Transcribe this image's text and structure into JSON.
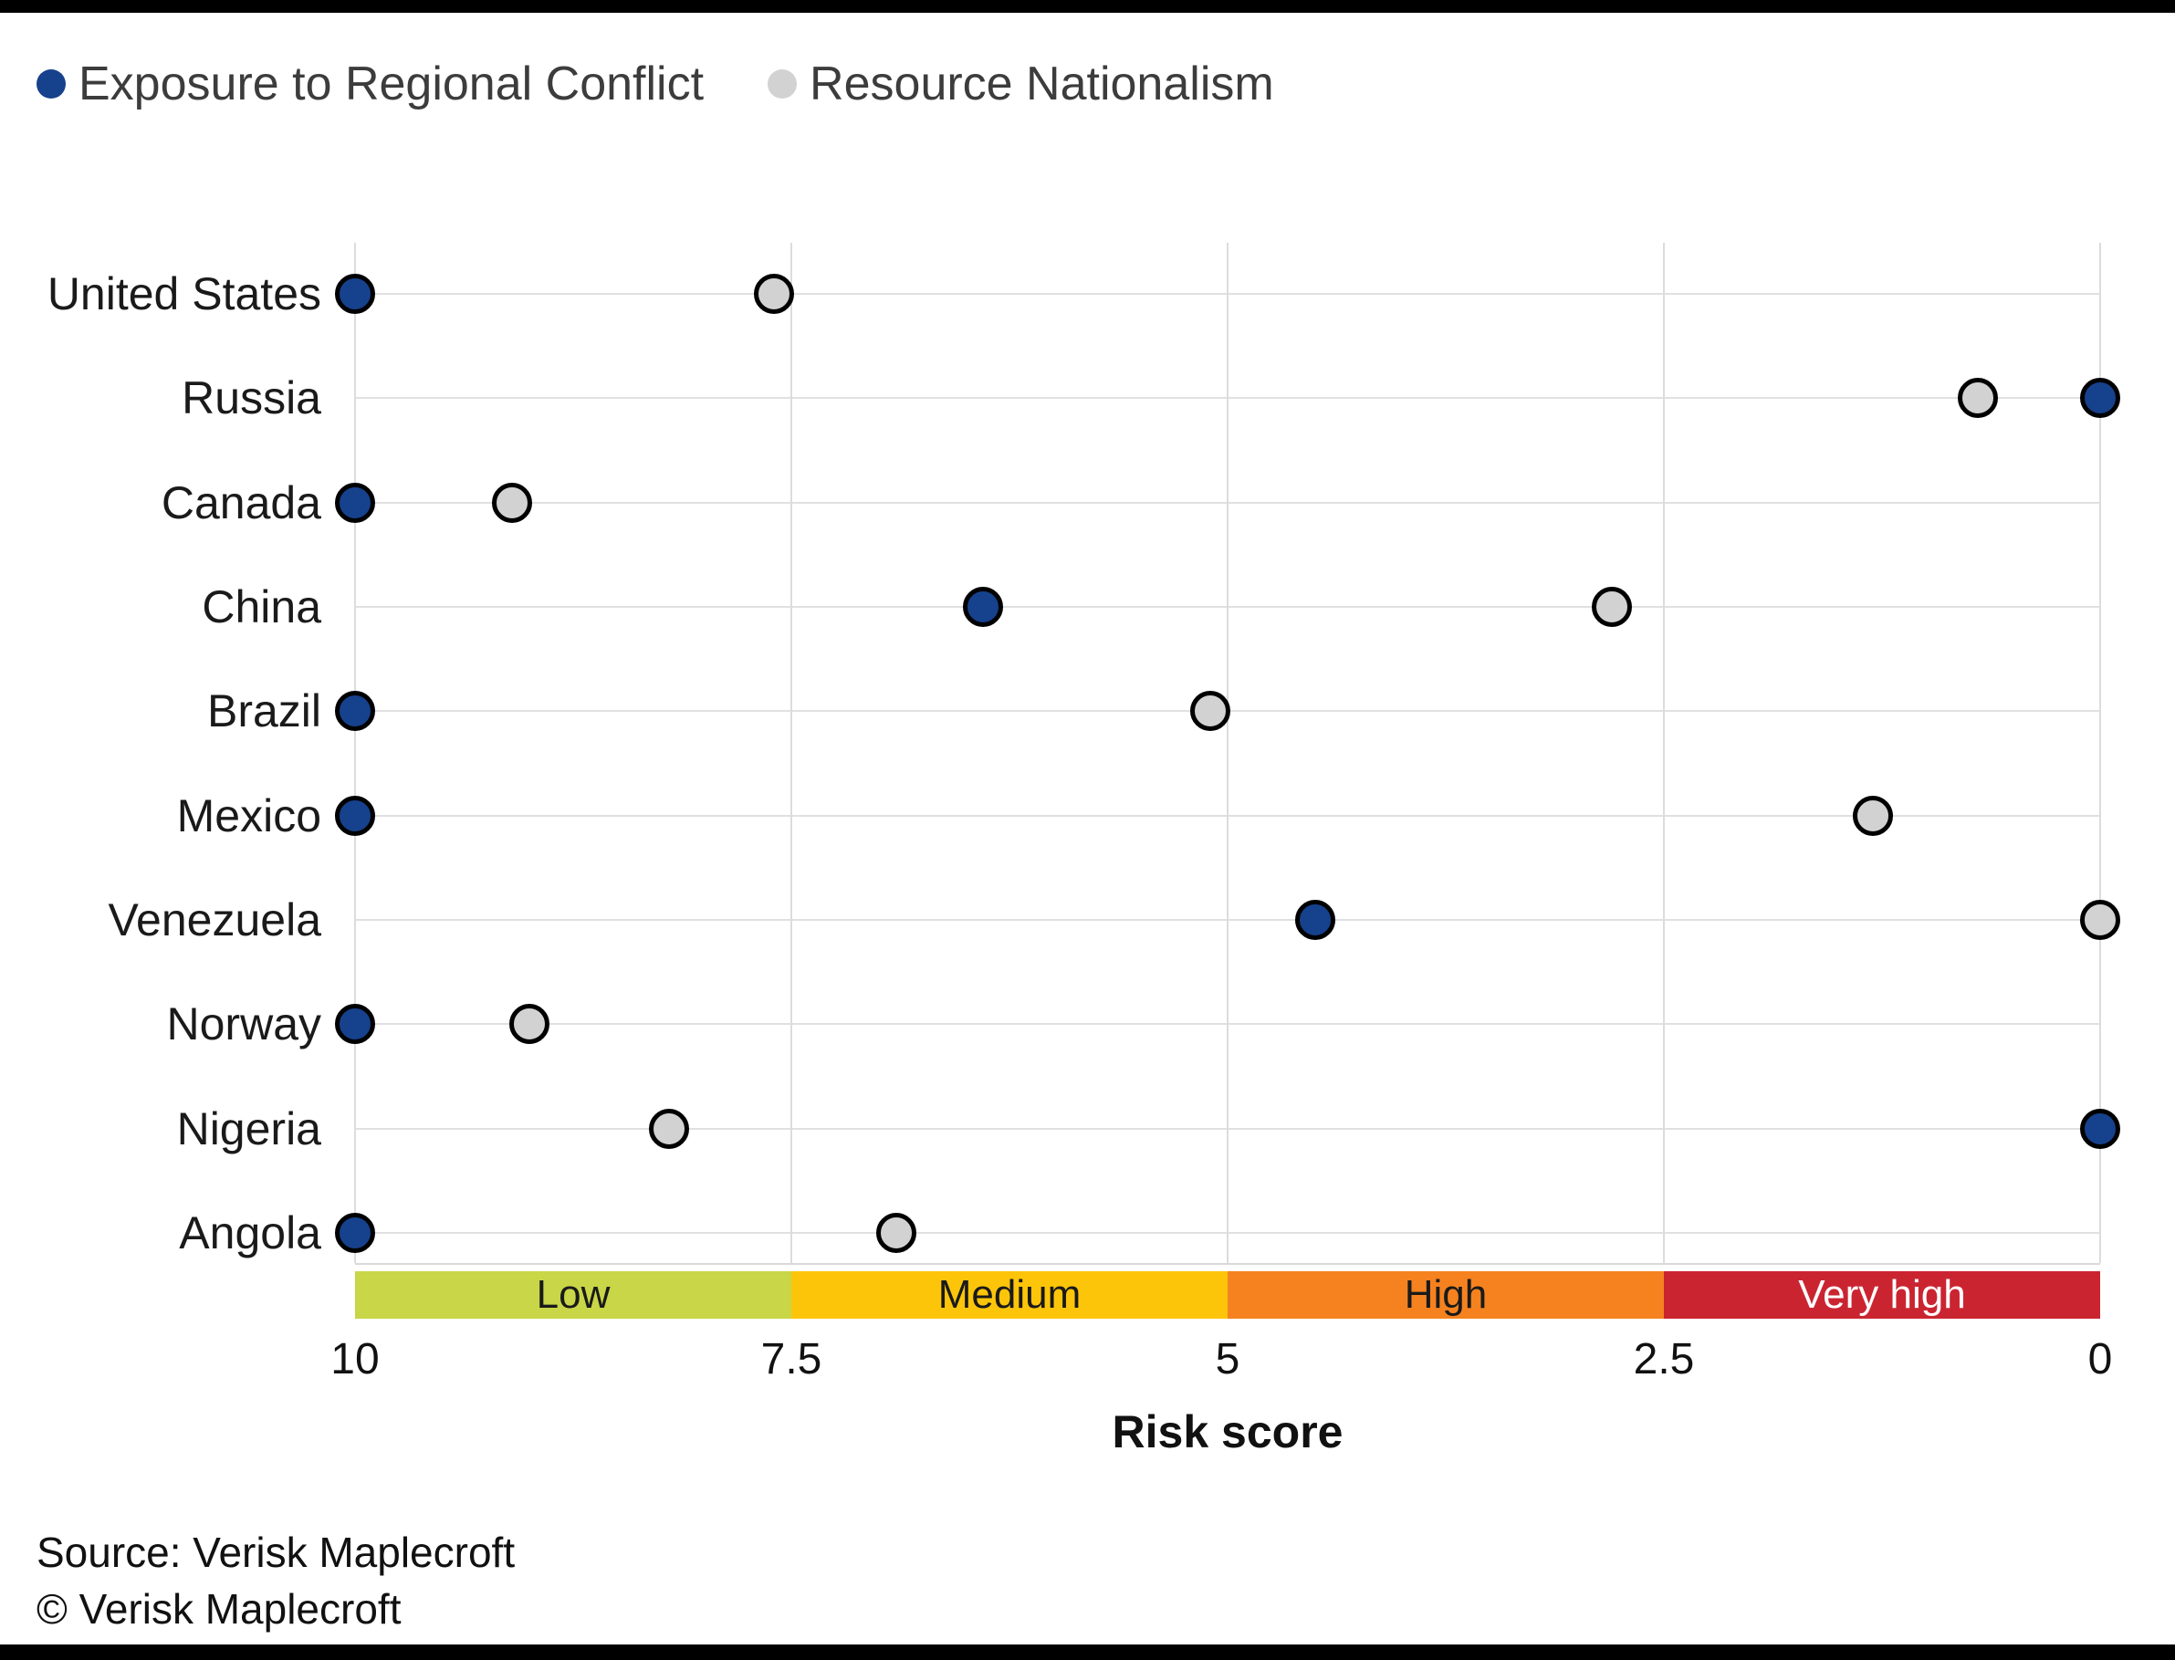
{
  "legend": {
    "items": [
      {
        "label": "Exposure to Regional Conflict",
        "color": "#16418C"
      },
      {
        "label": "Resource Nationalism",
        "color": "#D2D2D2"
      }
    ]
  },
  "chart_data": {
    "type": "scatter",
    "orientation": "horizontal-dot-plot",
    "categories": [
      "United States",
      "Russia",
      "Canada",
      "China",
      "Brazil",
      "Mexico",
      "Venezuela",
      "Norway",
      "Nigeria",
      "Angola"
    ],
    "series": [
      {
        "name": "Exposure to Regional Conflict",
        "color": "#16418C",
        "stroke": "#000000",
        "values": [
          10,
          0,
          10,
          6.4,
          10,
          10,
          4.5,
          10,
          0,
          10
        ]
      },
      {
        "name": "Resource Nationalism",
        "color": "#D2D2D2",
        "stroke": "#000000",
        "values": [
          7.6,
          0.7,
          9.1,
          2.8,
          5.1,
          1.3,
          0,
          9.0,
          8.2,
          6.9
        ]
      }
    ],
    "xlabel": "Risk score",
    "x_range": [
      10,
      0
    ],
    "x_ticks": [
      "10",
      "7.5",
      "5",
      "2.5",
      "0"
    ],
    "axis_reversed": true,
    "grid": true,
    "legend_position": "top-left",
    "bands": [
      {
        "label": "Low",
        "from": 10,
        "to": 7.5,
        "color": "#C8D647",
        "text_color": "#1a1a1a"
      },
      {
        "label": "Medium",
        "from": 7.5,
        "to": 5,
        "color": "#FDC50A",
        "text_color": "#1a1a1a"
      },
      {
        "label": "High",
        "from": 5,
        "to": 2.5,
        "color": "#F5821F",
        "text_color": "#1a1a1a"
      },
      {
        "label": "Very high",
        "from": 2.5,
        "to": 0,
        "color": "#CB2431",
        "text_color": "#ffffff"
      }
    ]
  },
  "footer": {
    "source": "Source: Verisk Maplecroft",
    "copyright": "© Verisk Maplecroft"
  }
}
